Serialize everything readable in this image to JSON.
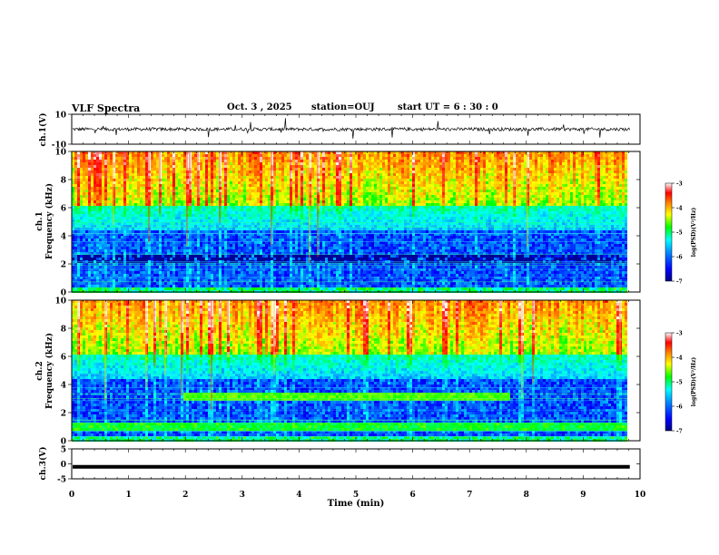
{
  "header": {
    "title": "VLF Spectra",
    "date": "Oct. 3 , 2025",
    "station": "station=OUJ",
    "start_ut": "start UT =  6 : 30 : 0"
  },
  "chart_data": [
    {
      "type": "line",
      "panel": "ch1-waveform",
      "ylabel": "ch.1(V)",
      "ylim": [
        -10,
        10
      ],
      "y_tick_labels": [
        "10",
        "-10"
      ],
      "x_range_min": [
        0,
        9.82
      ]
    },
    {
      "type": "heatmap",
      "panel": "ch1-spectrogram",
      "ylabel_channel": "ch.1",
      "ylabel": "Frequency (kHz)",
      "ylim": [
        0,
        10
      ],
      "y_tick_labels": [
        "0",
        "2",
        "4",
        "6",
        "8",
        "10"
      ],
      "colorbar": {
        "label": "log(PSD)(V²/Hz)",
        "range": [
          -7,
          -3
        ],
        "tick_labels": [
          "-3",
          "-4",
          "-5",
          "-6",
          "-7"
        ]
      }
    },
    {
      "type": "heatmap",
      "panel": "ch2-spectrogram",
      "ylabel_channel": "ch.2",
      "ylabel": "Frequency (kHz)",
      "ylim": [
        0,
        10
      ],
      "y_tick_labels": [
        "0",
        "2",
        "4",
        "6",
        "8",
        "10"
      ],
      "annotations": {
        "enhanced_band_khz": 3.2,
        "band_start_min": 1.95,
        "band_end_min": 7.7
      },
      "colorbar": {
        "label": "log(PSD)(V²/Hz)",
        "range": [
          -7,
          -3
        ],
        "tick_labels": [
          "-3",
          "-4",
          "-5",
          "-6",
          "-7"
        ]
      }
    },
    {
      "type": "line",
      "panel": "ch3-waveform",
      "ylabel": "ch.3(V)",
      "ylim": [
        -5,
        5
      ],
      "y_tick_labels": [
        "5",
        "0",
        "-5"
      ],
      "values_flat_v": -1.0
    }
  ],
  "x_axis": {
    "label": "Time (min)",
    "range": [
      0,
      10
    ],
    "tick_labels": [
      "0",
      "1",
      "2",
      "3",
      "4",
      "5",
      "6",
      "7",
      "8",
      "9",
      "10"
    ]
  },
  "colors": {
    "colormap": [
      "#000080",
      "#0000ff",
      "#0080ff",
      "#00ffff",
      "#00ff80",
      "#00ff00",
      "#ffff00",
      "#ff8000",
      "#ff0000",
      "#ffffff"
    ]
  }
}
